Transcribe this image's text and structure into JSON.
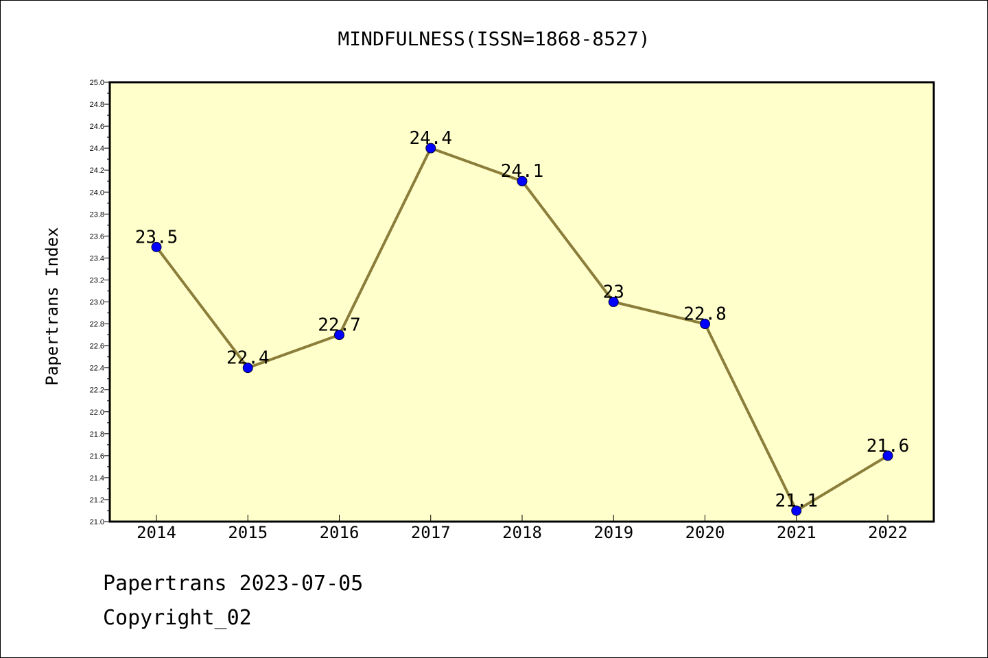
{
  "chart_data": {
    "type": "line",
    "title": "MINDFULNESS(ISSN=1868-8527)",
    "xlabel": "",
    "ylabel": "Papertrans Index",
    "categories": [
      "2014",
      "2015",
      "2016",
      "2017",
      "2018",
      "2019",
      "2020",
      "2021",
      "2022"
    ],
    "values": [
      23.5,
      22.4,
      22.7,
      24.4,
      24.1,
      23.0,
      22.8,
      21.1,
      21.6
    ],
    "data_labels": [
      "23.5",
      "22.4",
      "22.7",
      "24.4",
      "24.1",
      "23",
      "22.8",
      "21.1",
      "21.6"
    ],
    "ylim": [
      21.0,
      25.0
    ],
    "yticks": [
      "21.0",
      "21.2",
      "21.4",
      "21.6",
      "21.8",
      "22.0",
      "22.2",
      "22.4",
      "22.6",
      "22.8",
      "23.0",
      "23.2",
      "23.4",
      "23.6",
      "23.8",
      "24.0",
      "24.2",
      "24.4",
      "24.6",
      "24.8",
      "25.0"
    ],
    "grid": false,
    "legend": "none"
  },
  "colors": {
    "plot_background": "#ffffcc",
    "line": "#8b7d3a",
    "marker": "#0000ff"
  },
  "footer": {
    "line1": "Papertrans 2023-07-05",
    "line2": "Copyright_02"
  }
}
